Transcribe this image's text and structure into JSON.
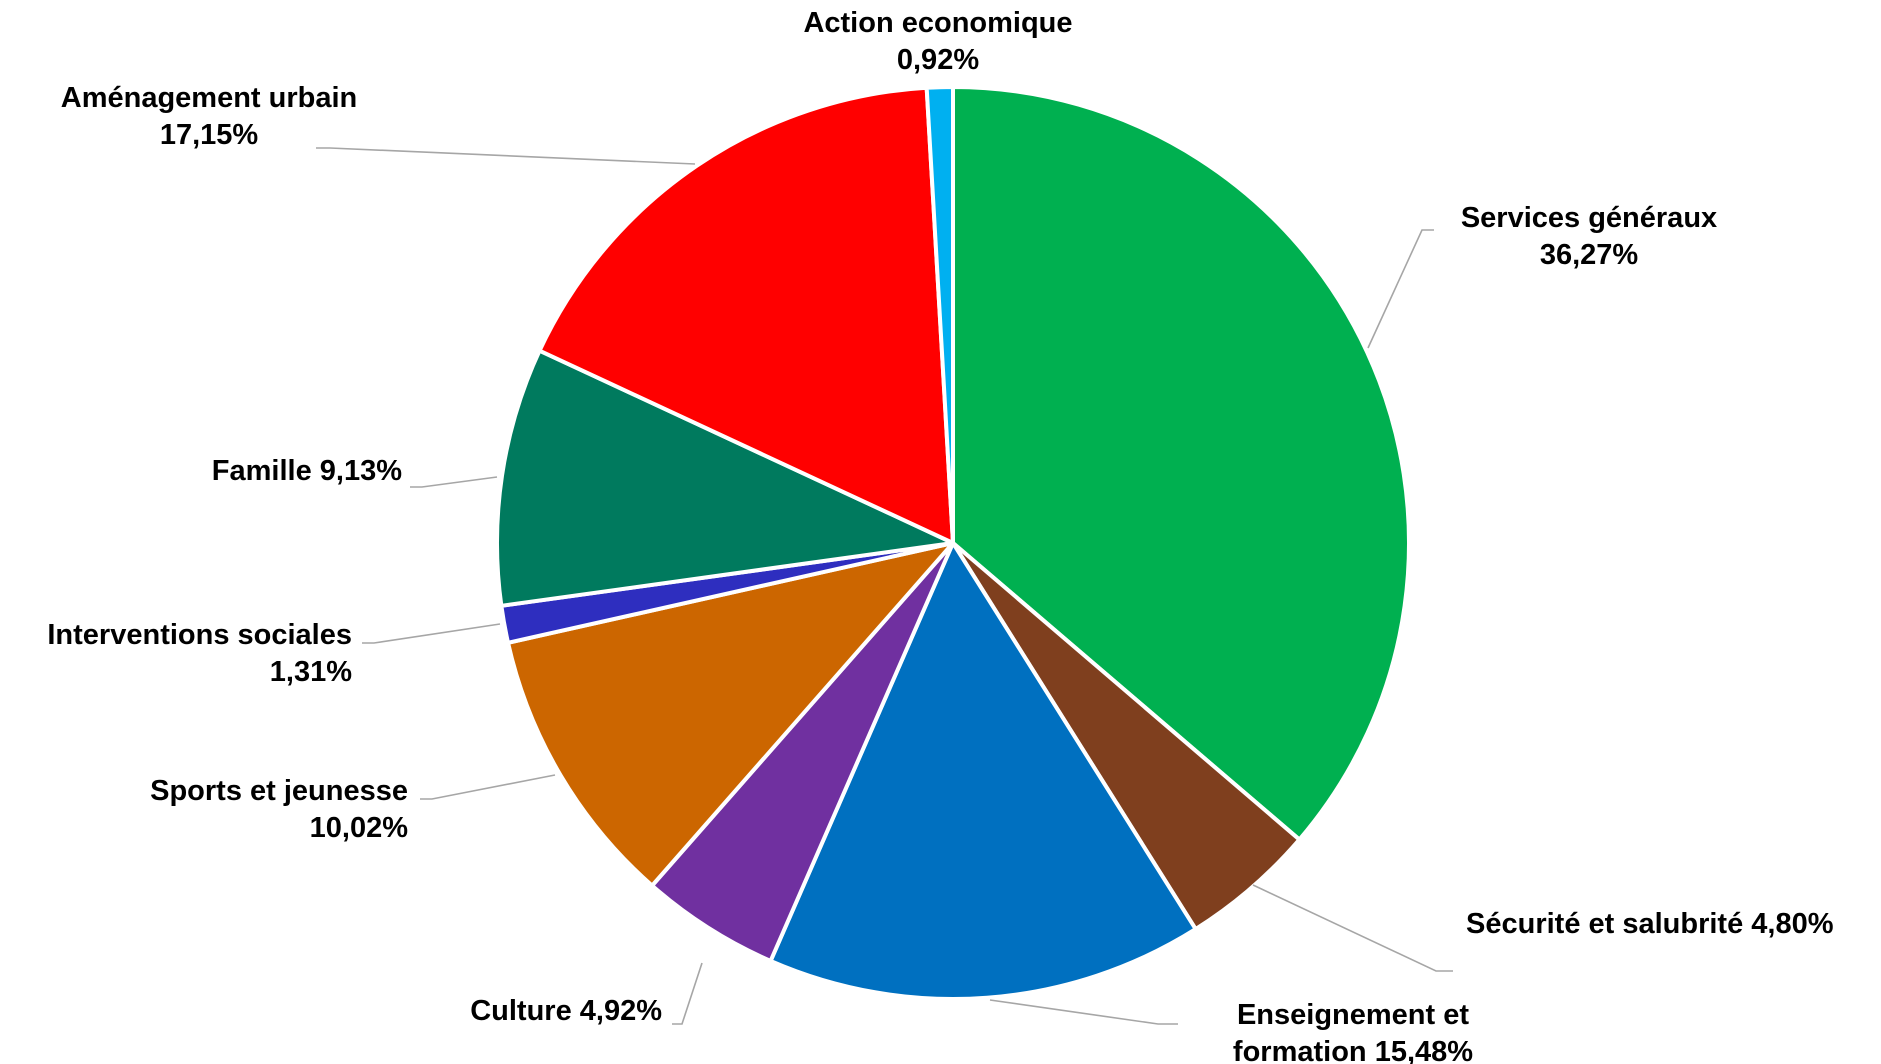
{
  "chart_data": {
    "type": "pie",
    "start_angle_deg": 0,
    "direction": "clockwise",
    "slices": [
      {
        "label": "Services généraux",
        "value": 36.27,
        "display": "36,27%",
        "color": "#00b050"
      },
      {
        "label": "Sécurité et salubrité",
        "value": 4.8,
        "display": "4,80%",
        "color": "#7f3f1e"
      },
      {
        "label": "Enseignement et formation",
        "value": 15.48,
        "display": "15,48%",
        "color": "#0070c0"
      },
      {
        "label": "Culture",
        "value": 4.92,
        "display": "4,92%",
        "color": "#7030a0"
      },
      {
        "label": "Sports et jeunesse",
        "value": 10.02,
        "display": "10,02%",
        "color": "#cc6600"
      },
      {
        "label": "Interventions sociales",
        "value": 1.31,
        "display": "1,31%",
        "color": "#2e2ebf"
      },
      {
        "label": "Famille",
        "value": 9.13,
        "display": "9,13%",
        "color": "#007a5e"
      },
      {
        "label": "Aménagement urbain",
        "value": 17.15,
        "display": "17,15%",
        "color": "#ff0000"
      },
      {
        "label": "Action economique",
        "value": 0.92,
        "display": "0,92%",
        "color": "#00b0f0"
      }
    ],
    "data_labels": [
      {
        "lines": [
          "Services généraux",
          "36,27%"
        ]
      },
      {
        "lines": [
          "Sécurité et salubrité 4,80%"
        ]
      },
      {
        "lines": [
          "Enseignement et",
          "formation 15,48%"
        ]
      },
      {
        "lines": [
          "Culture   4,92%"
        ]
      },
      {
        "lines": [
          "Sports et jeunesse",
          "10,02%"
        ]
      },
      {
        "lines": [
          "Interventions sociales",
          "1,31%"
        ]
      },
      {
        "lines": [
          "Famille  9,13%"
        ]
      },
      {
        "lines": [
          "Aménagement urbain",
          "17,15%"
        ]
      },
      {
        "lines": [
          "Action economique",
          "0,92%"
        ]
      }
    ],
    "leader_line_color": "#a6a6a6",
    "slice_border_color": "#ffffff"
  }
}
